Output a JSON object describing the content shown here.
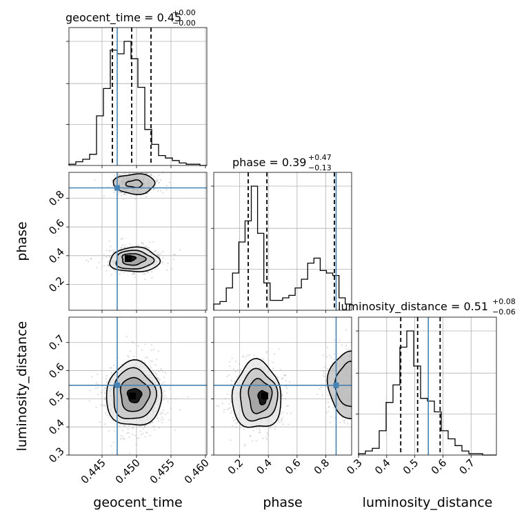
{
  "chart_data": {
    "type": "corner",
    "parameters": [
      "geocent_time",
      "phase",
      "luminosity_distance"
    ],
    "truth_color": "#4682b4",
    "truths": {
      "geocent_time": 0.4472,
      "phase": 0.872,
      "luminosity_distance": 0.548
    },
    "titles": [
      {
        "param": "geocent_time",
        "text": "geocent_time = 0.45",
        "upper": "+0.00",
        "lower": "−0.00"
      },
      {
        "param": "phase",
        "text": "phase = 0.39",
        "upper": "+0.47",
        "lower": "−0.13"
      },
      {
        "param": "luminosity_distance",
        "text": "luminosity_distance = 0.51",
        "upper": "+0.08",
        "lower": "−0.06"
      }
    ],
    "axes": {
      "geocent_time": {
        "range": [
          0.4402,
          0.4602
        ],
        "ticks": [
          0.445,
          0.45,
          0.455,
          0.46
        ],
        "tick_labels": [
          "0.445",
          "0.450",
          "0.455",
          "0.460"
        ]
      },
      "phase": {
        "range": [
          0.02,
          0.98
        ],
        "ticks": [
          0.2,
          0.4,
          0.6,
          0.8
        ],
        "tick_labels": [
          "0.2",
          "0.4",
          "0.6",
          "0.8"
        ]
      },
      "luminosity_distance": {
        "range": [
          0.3,
          0.79
        ],
        "ticks": [
          0.3,
          0.4,
          0.5,
          0.6,
          0.7
        ],
        "tick_labels": [
          "0.3",
          "0.4",
          "0.5",
          "0.6",
          "0.7"
        ]
      }
    },
    "grid": true,
    "histograms": {
      "geocent_time": {
        "edges_start": 0.4402,
        "bin_width": 0.001,
        "heights": [
          0.01,
          0.03,
          0.05,
          0.09,
          0.4,
          0.62,
          0.93,
          0.9,
          1.0,
          0.86,
          0.63,
          0.29,
          0.17,
          0.08,
          0.06,
          0.04,
          0.02,
          0.01,
          0.01,
          0.0
        ],
        "quantiles": [
          0.4465,
          0.4493,
          0.4521
        ]
      },
      "phase": {
        "edges_start": 0.02,
        "bin_width": 0.0436,
        "heights": [
          0.05,
          0.07,
          0.18,
          0.3,
          0.55,
          0.72,
          1.0,
          0.62,
          0.22,
          0.08,
          0.08,
          0.1,
          0.12,
          0.18,
          0.25,
          0.38,
          0.42,
          0.32,
          0.3,
          0.28,
          0.1,
          0.05
        ],
        "quantiles": [
          0.26,
          0.39,
          0.86
        ]
      },
      "luminosity_distance": {
        "edges_start": 0.3,
        "bin_width": 0.0245,
        "heights": [
          0.01,
          0.03,
          0.05,
          0.18,
          0.39,
          0.52,
          0.8,
          0.92,
          0.66,
          0.42,
          0.4,
          0.32,
          0.18,
          0.12,
          0.07,
          0.03,
          0.01,
          0.01,
          0.0,
          0.0
        ],
        "quantiles": [
          0.45,
          0.51,
          0.59
        ]
      }
    },
    "contours": [
      {
        "x": "geocent_time",
        "y": "phase",
        "levels": [
          {
            "cx": 0.4497,
            "cy": 0.37,
            "rx": 0.0036,
            "ry": 0.085,
            "wobble": 0.06
          },
          {
            "cx": 0.4496,
            "cy": 0.37,
            "rx": 0.0027,
            "ry": 0.065,
            "wobble": 0.07
          },
          {
            "cx": 0.4495,
            "cy": 0.375,
            "rx": 0.0017,
            "ry": 0.04,
            "wobble": 0.08
          },
          {
            "cx": 0.4493,
            "cy": 0.382,
            "rx": 0.0006,
            "ry": 0.015,
            "wobble": 0.1
          },
          {
            "cx": 0.4497,
            "cy": 0.9,
            "rx": 0.003,
            "ry": 0.07,
            "wobble": 0.06
          },
          {
            "cx": 0.4497,
            "cy": 0.9,
            "rx": 0.0012,
            "ry": 0.025,
            "wobble": 0.1
          }
        ],
        "peak": {
          "x": 0.4488,
          "y": 0.38
        }
      },
      {
        "x": "geocent_time",
        "y": "luminosity_distance",
        "levels": [
          {
            "cx": 0.4496,
            "cy": 0.515,
            "rx": 0.004,
            "ry": 0.115,
            "wobble": 0.05
          },
          {
            "cx": 0.4496,
            "cy": 0.515,
            "rx": 0.0031,
            "ry": 0.09,
            "wobble": 0.06
          },
          {
            "cx": 0.4497,
            "cy": 0.515,
            "rx": 0.0021,
            "ry": 0.06,
            "wobble": 0.06
          },
          {
            "cx": 0.4497,
            "cy": 0.512,
            "rx": 0.001,
            "ry": 0.025,
            "wobble": 0.08
          }
        ],
        "peak": {
          "x": 0.4494,
          "y": 0.51
        }
      },
      {
        "x": "phase",
        "y": "luminosity_distance",
        "levels": [
          {
            "cx": 0.32,
            "cy": 0.51,
            "rx": 0.17,
            "ry": 0.12,
            "wobble": 0.07
          },
          {
            "cx": 0.33,
            "cy": 0.51,
            "rx": 0.13,
            "ry": 0.09,
            "wobble": 0.07
          },
          {
            "cx": 0.34,
            "cy": 0.51,
            "rx": 0.08,
            "ry": 0.06,
            "wobble": 0.08
          },
          {
            "cx": 0.36,
            "cy": 0.505,
            "rx": 0.03,
            "ry": 0.025,
            "wobble": 0.1
          },
          {
            "cx": 0.97,
            "cy": 0.55,
            "rx": 0.15,
            "ry": 0.12,
            "wobble": 0.05
          },
          {
            "cx": 0.97,
            "cy": 0.55,
            "rx": 0.1,
            "ry": 0.08,
            "wobble": 0.05
          }
        ],
        "peak": {
          "x": 0.375,
          "y": 0.51
        }
      }
    ]
  }
}
